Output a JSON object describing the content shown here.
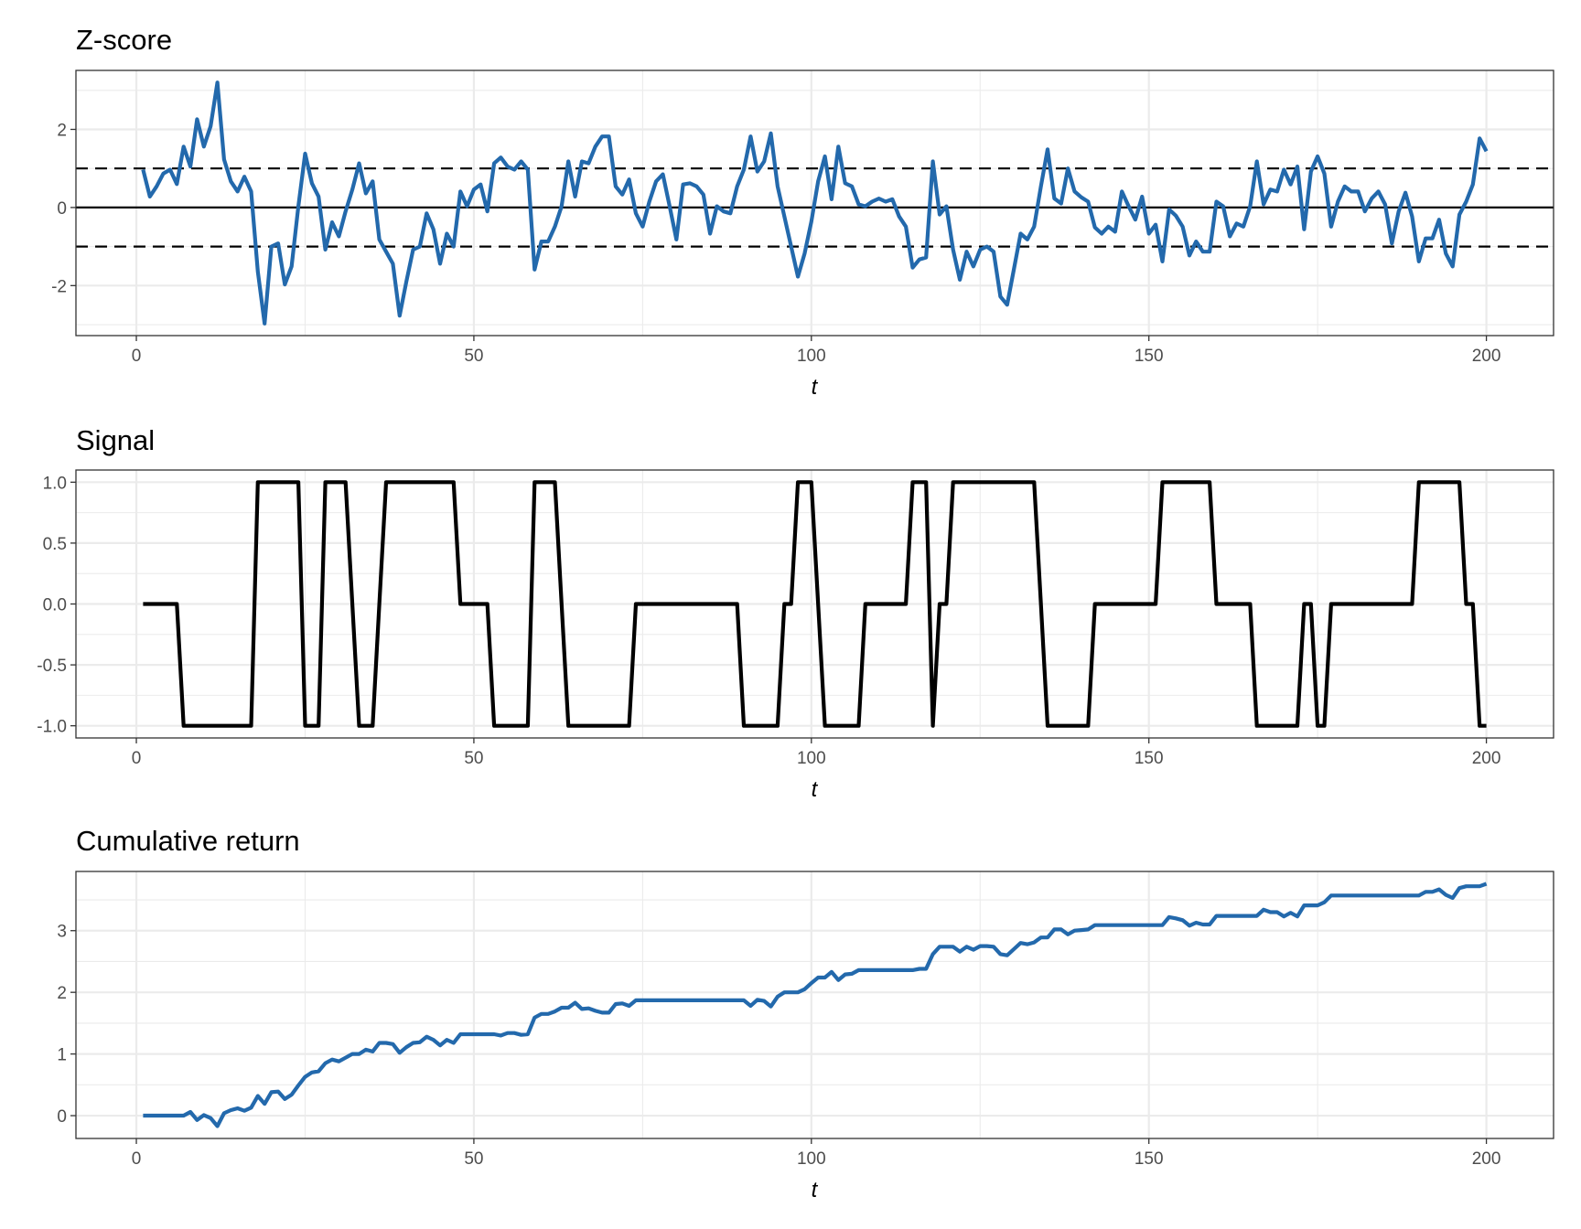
{
  "colors": {
    "zscore_line": "#2369AC",
    "signal_line": "#000000",
    "cumulative_line": "#2369AC",
    "reference_lines": "#000000",
    "grid": "#EBEBEB",
    "panel_border": "#333333"
  },
  "chart_data": [
    {
      "type": "line",
      "title": "Z-score",
      "xlabel": "t",
      "ylabel": "",
      "xlim": [
        -8.95,
        209.95
      ],
      "ylim": [
        -3.28,
        3.51
      ],
      "x_ticks": [
        0,
        50,
        100,
        150,
        200
      ],
      "x_tick_labels": [
        "0",
        "50",
        "100",
        "150",
        "200"
      ],
      "y_ticks": [
        -2,
        0,
        2
      ],
      "y_tick_labels": [
        "-2",
        "0",
        "2"
      ],
      "grid": true,
      "reference_lines": [
        {
          "y": 1,
          "style": "dashed"
        },
        {
          "y": 0,
          "style": "solid"
        },
        {
          "y": -1,
          "style": "dashed"
        }
      ],
      "x": [
        1,
        2,
        3,
        4,
        5,
        6,
        7,
        8,
        9,
        10,
        11,
        12,
        13,
        14,
        15,
        16,
        17,
        18,
        19,
        20,
        21,
        22,
        23,
        24,
        25,
        26,
        27,
        28,
        29,
        30,
        31,
        32,
        33,
        34,
        35,
        36,
        37,
        38,
        39,
        40,
        41,
        42,
        43,
        44,
        45,
        46,
        47,
        48,
        49,
        50,
        51,
        52,
        53,
        54,
        55,
        56,
        57,
        58,
        59,
        60,
        61,
        62,
        63,
        64,
        65,
        66,
        67,
        68,
        69,
        70,
        71,
        72,
        73,
        74,
        75,
        76,
        77,
        78,
        79,
        80,
        81,
        82,
        83,
        84,
        85,
        86,
        87,
        88,
        89,
        90,
        91,
        92,
        93,
        94,
        95,
        96,
        97,
        98,
        99,
        100,
        101,
        102,
        103,
        104,
        105,
        106,
        107,
        108,
        109,
        110,
        111,
        112,
        113,
        114,
        115,
        116,
        117,
        118,
        119,
        120,
        121,
        122,
        123,
        124,
        125,
        126,
        127,
        128,
        129,
        130,
        131,
        132,
        133,
        134,
        135,
        136,
        137,
        138,
        139,
        140,
        141,
        142,
        143,
        144,
        145,
        146,
        147,
        148,
        149,
        150,
        151,
        152,
        153,
        154,
        155,
        156,
        157,
        158,
        159,
        160,
        161,
        162,
        163,
        164,
        165,
        166,
        167,
        168,
        169,
        170,
        171,
        172,
        173,
        174,
        175,
        176,
        177,
        178,
        179,
        180,
        181,
        182,
        183,
        184,
        185,
        186,
        187,
        188,
        189,
        190,
        191,
        192,
        193,
        194,
        195,
        196,
        197,
        198,
        199,
        200
      ],
      "y": [
        0.97,
        0.28,
        0.54,
        0.87,
        0.97,
        0.6,
        1.56,
        1.05,
        2.26,
        1.56,
        2.08,
        3.2,
        1.23,
        0.67,
        0.41,
        0.79,
        0.41,
        -1.64,
        -2.97,
        -1.0,
        -0.92,
        -1.97,
        -1.51,
        0.03,
        1.38,
        0.62,
        0.28,
        -1.08,
        -0.38,
        -0.74,
        -0.1,
        0.46,
        1.13,
        0.36,
        0.67,
        -0.82,
        -1.13,
        -1.44,
        -2.77,
        -1.9,
        -1.08,
        -1.0,
        -0.15,
        -0.56,
        -1.44,
        -0.67,
        -1.0,
        0.41,
        0.03,
        0.46,
        0.59,
        -0.1,
        1.13,
        1.28,
        1.05,
        0.97,
        1.18,
        0.97,
        -1.59,
        -0.87,
        -0.87,
        -0.49,
        0.03,
        1.18,
        0.28,
        1.18,
        1.13,
        1.56,
        1.82,
        1.82,
        0.54,
        0.33,
        0.72,
        -0.15,
        -0.49,
        0.15,
        0.67,
        0.85,
        0.03,
        -0.82,
        0.59,
        0.62,
        0.54,
        0.33,
        -0.67,
        0.03,
        -0.1,
        -0.15,
        0.54,
        0.97,
        1.82,
        0.92,
        1.18,
        1.9,
        0.54,
        -0.23,
        -1.0,
        -1.77,
        -1.18,
        -0.36,
        0.67,
        1.31,
        0.21,
        1.56,
        0.62,
        0.54,
        0.08,
        0.03,
        0.15,
        0.23,
        0.15,
        0.21,
        -0.23,
        -0.49,
        -1.54,
        -1.33,
        -1.28,
        1.18,
        -0.18,
        0.03,
        -1.08,
        -1.85,
        -1.13,
        -1.51,
        -1.08,
        -1.0,
        -1.13,
        -2.28,
        -2.49,
        -1.59,
        -0.67,
        -0.82,
        -0.49,
        0.54,
        1.49,
        0.23,
        0.1,
        1.0,
        0.41,
        0.26,
        0.15,
        -0.51,
        -0.67,
        -0.49,
        -0.62,
        0.41,
        0.03,
        -0.31,
        0.28,
        -0.67,
        -0.44,
        -1.38,
        -0.05,
        -0.21,
        -0.49,
        -1.23,
        -0.87,
        -1.13,
        -1.13,
        0.15,
        0.03,
        -0.74,
        -0.41,
        -0.49,
        0.03,
        1.18,
        0.08,
        0.46,
        0.41,
        0.97,
        0.59,
        1.05,
        -0.56,
        0.92,
        1.31,
        0.87,
        -0.49,
        0.15,
        0.54,
        0.41,
        0.41,
        -0.1,
        0.23,
        0.41,
        0.08,
        -0.92,
        -0.1,
        0.38,
        -0.23,
        -1.38,
        -0.79,
        -0.79,
        -0.31,
        -1.18,
        -1.51,
        -0.18,
        0.15,
        0.59,
        1.77,
        1.44
      ]
    },
    {
      "type": "line",
      "title": "Signal",
      "xlabel": "t",
      "ylabel": "",
      "xlim": [
        -8.95,
        209.95
      ],
      "ylim": [
        -1.1,
        1.1
      ],
      "x_ticks": [
        0,
        50,
        100,
        150,
        200
      ],
      "x_tick_labels": [
        "0",
        "50",
        "100",
        "150",
        "200"
      ],
      "y_ticks": [
        -1,
        -0.5,
        0,
        0.5,
        1
      ],
      "y_tick_labels": [
        "-1.0",
        "-0.5",
        "0.0",
        "0.5",
        "1.0"
      ],
      "grid": true,
      "x": [
        1,
        2,
        3,
        4,
        5,
        6,
        7,
        8,
        9,
        10,
        11,
        12,
        13,
        14,
        15,
        16,
        17,
        18,
        19,
        20,
        21,
        22,
        23,
        24,
        25,
        26,
        27,
        28,
        29,
        30,
        31,
        32,
        33,
        34,
        35,
        36,
        37,
        38,
        39,
        40,
        41,
        42,
        43,
        44,
        45,
        46,
        47,
        48,
        49,
        50,
        51,
        52,
        53,
        54,
        55,
        56,
        57,
        58,
        59,
        60,
        61,
        62,
        63,
        64,
        65,
        66,
        67,
        68,
        69,
        70,
        71,
        72,
        73,
        74,
        75,
        76,
        77,
        78,
        79,
        80,
        81,
        82,
        83,
        84,
        85,
        86,
        87,
        88,
        89,
        90,
        91,
        92,
        93,
        94,
        95,
        96,
        97,
        98,
        99,
        100,
        101,
        102,
        103,
        104,
        105,
        106,
        107,
        108,
        109,
        110,
        111,
        112,
        113,
        114,
        115,
        116,
        117,
        118,
        119,
        120,
        121,
        122,
        123,
        124,
        125,
        126,
        127,
        128,
        129,
        130,
        131,
        132,
        133,
        134,
        135,
        136,
        137,
        138,
        139,
        140,
        141,
        142,
        143,
        144,
        145,
        146,
        147,
        148,
        149,
        150,
        151,
        152,
        153,
        154,
        155,
        156,
        157,
        158,
        159,
        160,
        161,
        162,
        163,
        164,
        165,
        166,
        167,
        168,
        169,
        170,
        171,
        172,
        173,
        174,
        175,
        176,
        177,
        178,
        179,
        180,
        181,
        182,
        183,
        184,
        185,
        186,
        187,
        188,
        189,
        190,
        191,
        192,
        193,
        194,
        195,
        196,
        197,
        198,
        199,
        200
      ],
      "y": [
        0,
        0,
        0,
        0,
        0,
        0,
        -1,
        -1,
        -1,
        -1,
        -1,
        -1,
        -1,
        -1,
        -1,
        -1,
        -1,
        1,
        1,
        1,
        1,
        1,
        1,
        1,
        -1,
        -1,
        -1,
        1,
        1,
        1,
        1,
        0,
        -1,
        -1,
        -1,
        0,
        1,
        1,
        1,
        1,
        1,
        1,
        1,
        1,
        1,
        1,
        1,
        0,
        0,
        0,
        0,
        0,
        -1,
        -1,
        -1,
        -1,
        -1,
        -1,
        1,
        1,
        1,
        1,
        0,
        -1,
        -1,
        -1,
        -1,
        -1,
        -1,
        -1,
        -1,
        -1,
        -1,
        0,
        0,
        0,
        0,
        0,
        0,
        0,
        0,
        0,
        0,
        0,
        0,
        0,
        0,
        0,
        0,
        -1,
        -1,
        -1,
        -1,
        -1,
        -1,
        0,
        0,
        1,
        1,
        1,
        0,
        -1,
        -1,
        -1,
        -1,
        -1,
        -1,
        0,
        0,
        0,
        0,
        0,
        0,
        0,
        1,
        1,
        1,
        -1,
        0,
        0,
        1,
        1,
        1,
        1,
        1,
        1,
        1,
        1,
        1,
        1,
        1,
        1,
        1,
        0,
        -1,
        -1,
        -1,
        -1,
        -1,
        -1,
        -1,
        0,
        0,
        0,
        0,
        0,
        0,
        0,
        0,
        0,
        0,
        1,
        1,
        1,
        1,
        1,
        1,
        1,
        1,
        0,
        0,
        0,
        0,
        0,
        0,
        -1,
        -1,
        -1,
        -1,
        -1,
        -1,
        -1,
        0,
        0,
        -1,
        -1,
        0,
        0,
        0,
        0,
        0,
        0,
        0,
        0,
        0,
        0,
        0,
        0,
        0,
        1,
        1,
        1,
        1,
        1,
        1,
        1,
        0,
        0,
        -1,
        -1
      ]
    },
    {
      "type": "line",
      "title": "Cumulative return",
      "xlabel": "t",
      "ylabel": "",
      "xlim": [
        -8.95,
        209.95
      ],
      "ylim": [
        -0.37,
        3.96
      ],
      "x_ticks": [
        0,
        50,
        100,
        150,
        200
      ],
      "x_tick_labels": [
        "0",
        "50",
        "100",
        "150",
        "200"
      ],
      "y_ticks": [
        0,
        1,
        2,
        3
      ],
      "y_tick_labels": [
        "0",
        "1",
        "2",
        "3"
      ],
      "grid": true,
      "x": [
        1,
        2,
        3,
        4,
        5,
        6,
        7,
        8,
        9,
        10,
        11,
        12,
        13,
        14,
        15,
        16,
        17,
        18,
        19,
        20,
        21,
        22,
        23,
        24,
        25,
        26,
        27,
        28,
        29,
        30,
        31,
        32,
        33,
        34,
        35,
        36,
        37,
        38,
        39,
        40,
        41,
        42,
        43,
        44,
        45,
        46,
        47,
        48,
        49,
        50,
        51,
        52,
        53,
        54,
        55,
        56,
        57,
        58,
        59,
        60,
        61,
        62,
        63,
        64,
        65,
        66,
        67,
        68,
        69,
        70,
        71,
        72,
        73,
        74,
        75,
        76,
        77,
        78,
        79,
        80,
        81,
        82,
        83,
        84,
        85,
        86,
        87,
        88,
        89,
        90,
        91,
        92,
        93,
        94,
        95,
        96,
        97,
        98,
        99,
        100,
        101,
        102,
        103,
        104,
        105,
        106,
        107,
        108,
        109,
        110,
        111,
        112,
        113,
        114,
        115,
        116,
        117,
        118,
        119,
        120,
        121,
        122,
        123,
        124,
        125,
        126,
        127,
        128,
        129,
        130,
        131,
        132,
        133,
        134,
        135,
        136,
        137,
        138,
        139,
        140,
        141,
        142,
        143,
        144,
        145,
        146,
        147,
        148,
        149,
        150,
        151,
        152,
        153,
        154,
        155,
        156,
        157,
        158,
        159,
        160,
        161,
        162,
        163,
        164,
        165,
        166,
        167,
        168,
        169,
        170,
        171,
        172,
        173,
        174,
        175,
        176,
        177,
        178,
        179,
        180,
        181,
        182,
        183,
        184,
        185,
        186,
        187,
        188,
        189,
        190,
        191,
        192,
        193,
        194,
        195,
        196,
        197,
        198,
        199,
        200
      ],
      "y": [
        0,
        0,
        0,
        0,
        0,
        0,
        0,
        0.06,
        -0.07,
        0.01,
        -0.04,
        -0.17,
        0.04,
        0.09,
        0.12,
        0.08,
        0.13,
        0.32,
        0.19,
        0.38,
        0.39,
        0.27,
        0.34,
        0.49,
        0.63,
        0.7,
        0.72,
        0.85,
        0.91,
        0.88,
        0.94,
        1.0,
        1.0,
        1.07,
        1.04,
        1.18,
        1.18,
        1.16,
        1.02,
        1.11,
        1.18,
        1.19,
        1.28,
        1.23,
        1.14,
        1.23,
        1.18,
        1.32,
        1.32,
        1.32,
        1.32,
        1.32,
        1.32,
        1.3,
        1.34,
        1.34,
        1.31,
        1.32,
        1.59,
        1.65,
        1.65,
        1.69,
        1.75,
        1.75,
        1.83,
        1.73,
        1.74,
        1.7,
        1.67,
        1.67,
        1.81,
        1.82,
        1.78,
        1.87,
        1.87,
        1.87,
        1.87,
        1.87,
        1.87,
        1.87,
        1.87,
        1.87,
        1.87,
        1.87,
        1.87,
        1.87,
        1.87,
        1.87,
        1.87,
        1.87,
        1.78,
        1.88,
        1.86,
        1.77,
        1.93,
        2.0,
        2.0,
        2.0,
        2.05,
        2.15,
        2.24,
        2.24,
        2.33,
        2.2,
        2.29,
        2.3,
        2.36,
        2.36,
        2.36,
        2.36,
        2.36,
        2.36,
        2.36,
        2.36,
        2.36,
        2.38,
        2.38,
        2.62,
        2.74,
        2.74,
        2.74,
        2.66,
        2.74,
        2.69,
        2.75,
        2.75,
        2.74,
        2.62,
        2.6,
        2.7,
        2.8,
        2.78,
        2.81,
        2.89,
        2.89,
        3.02,
        3.02,
        2.94,
        3.0,
        3.01,
        3.02,
        3.09,
        3.09,
        3.09,
        3.09,
        3.09,
        3.09,
        3.09,
        3.09,
        3.09,
        3.09,
        3.09,
        3.22,
        3.2,
        3.17,
        3.08,
        3.13,
        3.1,
        3.1,
        3.24,
        3.24,
        3.24,
        3.24,
        3.24,
        3.24,
        3.24,
        3.34,
        3.3,
        3.3,
        3.23,
        3.29,
        3.23,
        3.41,
        3.41,
        3.41,
        3.46,
        3.57,
        3.57,
        3.57,
        3.57,
        3.57,
        3.57,
        3.57,
        3.57,
        3.57,
        3.57,
        3.57,
        3.57,
        3.57,
        3.57,
        3.63,
        3.63,
        3.67,
        3.58,
        3.53,
        3.69,
        3.72,
        3.72,
        3.72,
        3.76
      ]
    }
  ]
}
